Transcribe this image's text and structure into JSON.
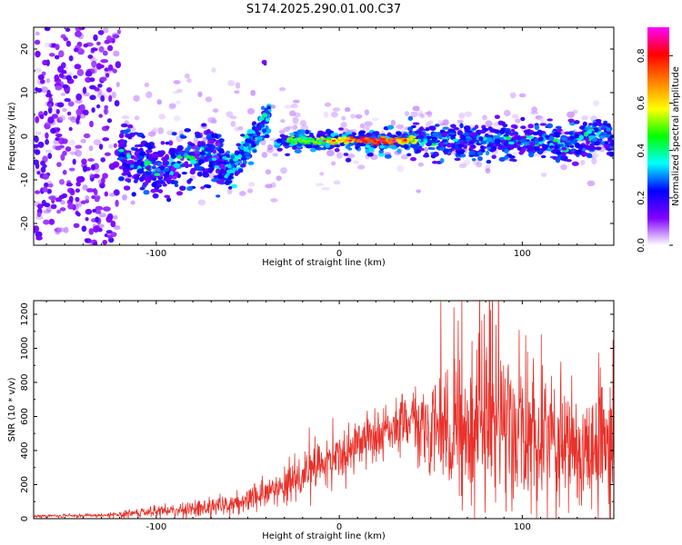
{
  "title": "S174.2025.290.01.00.C37",
  "chart_data": [
    {
      "type": "heatmap",
      "title": "",
      "xlabel": "Height of straight line (km)",
      "ylabel": "Frequency (Hz)",
      "xlim": [
        -167,
        150
      ],
      "ylim": [
        -25,
        25
      ],
      "xticks": [
        -100,
        0,
        100
      ],
      "yticks": [
        -20,
        -10,
        0,
        10,
        20
      ],
      "colorbar": {
        "label": "Normalized spectral amplitude",
        "range": [
          0,
          0.92
        ],
        "ticks": [
          0.0,
          0.2,
          0.4,
          0.6,
          0.8
        ],
        "colors": [
          "#ffffff",
          "#8000ff",
          "#0000ff",
          "#00ffff",
          "#00ff00",
          "#ffff00",
          "#ff8000",
          "#ff0000",
          "#ff00ff"
        ]
      },
      "features": [
        {
          "name": "diffuse noise band",
          "x": [
            -167,
            -120
          ],
          "y": [
            -25,
            25
          ],
          "amplitude": 0.05
        },
        {
          "name": "signal trace",
          "x": [
            -120,
            -60
          ],
          "center_freq": -6,
          "spread": 4,
          "amplitude": 0.3
        },
        {
          "name": "rising trace",
          "x": [
            -60,
            -38
          ],
          "center_freq": [
            -10,
            5
          ],
          "amplitude": 0.35
        },
        {
          "name": "isolated blob",
          "x": -41,
          "y": 17,
          "amplitude": 0.1
        },
        {
          "name": "strong line",
          "x": [
            -30,
            45
          ],
          "center_freq": -1,
          "amplitude": 0.85
        },
        {
          "name": "noisy line",
          "x": [
            45,
            150
          ],
          "center_freq": -1,
          "spread": 3,
          "amplitude": 0.35
        }
      ]
    },
    {
      "type": "line",
      "title": "",
      "xlabel": "Height of straight line (km)",
      "ylabel": "SNR (10 * v/v)",
      "xlim": [
        -167,
        150
      ],
      "ylim": [
        0,
        1280
      ],
      "xticks": [
        -100,
        0,
        100
      ],
      "yticks": [
        0,
        200,
        400,
        600,
        800,
        1000,
        1200
      ],
      "series": [
        {
          "name": "SNR",
          "color": "#e8312a",
          "envelope_x": [
            -167,
            -130,
            -110,
            -90,
            -70,
            -50,
            -40,
            -30,
            -20,
            -10,
            0,
            10,
            20,
            30,
            40,
            50,
            60,
            70,
            80,
            90,
            100,
            110,
            120,
            130,
            140,
            150
          ],
          "envelope_mean": [
            15,
            20,
            30,
            50,
            70,
            110,
            150,
            200,
            260,
            320,
            370,
            430,
            480,
            540,
            580,
            550,
            520,
            500,
            520,
            540,
            520,
            480,
            450,
            420,
            420,
            430
          ],
          "envelope_amp": [
            10,
            10,
            25,
            40,
            55,
            70,
            90,
            120,
            150,
            160,
            150,
            140,
            140,
            150,
            180,
            260,
            350,
            400,
            420,
            450,
            420,
            380,
            380,
            380,
            400,
            380
          ]
        }
      ]
    }
  ]
}
